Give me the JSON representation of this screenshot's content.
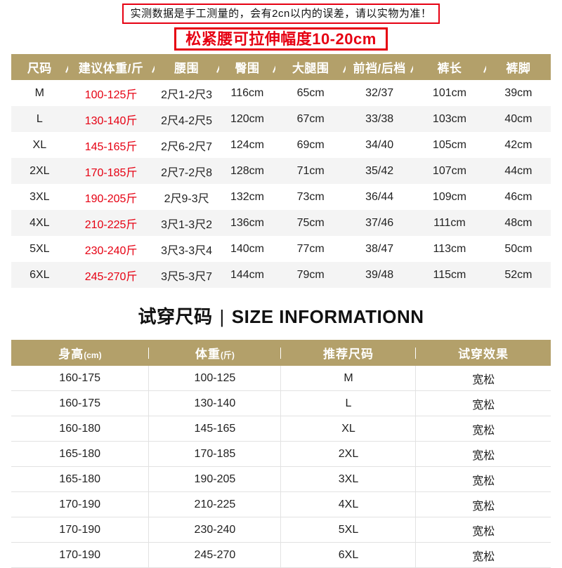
{
  "notice": "实测数据是手工测量的，会有2cn以内的误差，请以实物为准！",
  "stretch_title": "松紧腰可拉伸幅度10-20cm",
  "size_table": {
    "headers": [
      "尺码",
      "建议体重/斤",
      "腰围",
      "臀围",
      "大腿围",
      "前裆/后档",
      "裤长",
      "裤脚"
    ],
    "rows": [
      [
        "M",
        "100-125斤",
        "2尺1-2尺3",
        "116cm",
        "65cm",
        "32/37",
        "101cm",
        "39cm"
      ],
      [
        "L",
        "130-140斤",
        "2尺4-2尺5",
        "120cm",
        "67cm",
        "33/38",
        "103cm",
        "40cm"
      ],
      [
        "XL",
        "145-165斤",
        "2尺6-2尺7",
        "124cm",
        "69cm",
        "34/40",
        "105cm",
        "42cm"
      ],
      [
        "2XL",
        "170-185斤",
        "2尺7-2尺8",
        "128cm",
        "71cm",
        "35/42",
        "107cm",
        "44cm"
      ],
      [
        "3XL",
        "190-205斤",
        "2尺9-3尺",
        "132cm",
        "73cm",
        "36/44",
        "109cm",
        "46cm"
      ],
      [
        "4XL",
        "210-225斤",
        "3尺1-3尺2",
        "136cm",
        "75cm",
        "37/46",
        "111cm",
        "48cm"
      ],
      [
        "5XL",
        "230-240斤",
        "3尺3-3尺4",
        "140cm",
        "77cm",
        "38/47",
        "113cm",
        "50cm"
      ],
      [
        "6XL",
        "245-270斤",
        "3尺5-3尺7",
        "144cm",
        "79cm",
        "39/48",
        "115cm",
        "52cm"
      ]
    ]
  },
  "fit_section": {
    "title_cn": "试穿尺码",
    "divider": "|",
    "title_en": "SIZE INFORMATIONN"
  },
  "fit_table": {
    "headers": [
      {
        "label": "身高",
        "unit": "(cm)"
      },
      {
        "label": "体重",
        "unit": "(斤)"
      },
      {
        "label": "推荐尺码",
        "unit": ""
      },
      {
        "label": "试穿效果",
        "unit": ""
      }
    ],
    "rows": [
      [
        "160-175",
        "100-125",
        "M",
        "宽松"
      ],
      [
        "160-175",
        "130-140",
        "L",
        "宽松"
      ],
      [
        "160-180",
        "145-165",
        "XL",
        "宽松"
      ],
      [
        "165-180",
        "170-185",
        "2XL",
        "宽松"
      ],
      [
        "165-180",
        "190-205",
        "3XL",
        "宽松"
      ],
      [
        "170-190",
        "210-225",
        "4XL",
        "宽松"
      ],
      [
        "170-190",
        "230-240",
        "5XL",
        "宽松"
      ],
      [
        "170-190",
        "245-270",
        "6XL",
        "宽松"
      ]
    ]
  },
  "colors": {
    "accent_red": "#e60012",
    "table_header_bg": "#b3a06a",
    "row_alt_bg": "#f4f4f4"
  }
}
